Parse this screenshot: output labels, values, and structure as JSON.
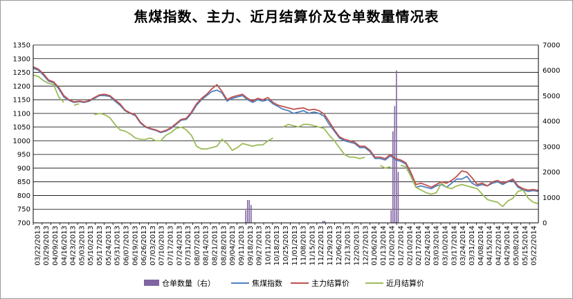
{
  "chart_data": {
    "type": "line",
    "title": "焦煤指数、主力、近月结算价及仓单数量情况表",
    "y_left": {
      "min": 700,
      "max": 1350,
      "step": 50
    },
    "y_right": {
      "min": 0,
      "max": 7000,
      "step": 1000
    },
    "grid": "horizontal",
    "legend_position": "bottom",
    "x_ticks": [
      "03/22/2013",
      "03/29/2013",
      "04/09/2013",
      "04/16/2013",
      "04/23/2013",
      "05/03/2013",
      "05/10/2013",
      "05/17/2013",
      "05/24/2013",
      "05/31/2013",
      "06/07/2013",
      "06/19/2013",
      "06/26/2013",
      "07/03/2013",
      "07/10/2013",
      "07/17/2013",
      "07/24/2013",
      "07/31/2013",
      "08/07/2013",
      "08/14/2013",
      "08/21/2013",
      "08/28/2013",
      "09/04/2013",
      "09/11/2013",
      "09/18/2013",
      "09/27/2013",
      "10/11/2013",
      "10/18/2013",
      "10/25/2013",
      "11/01/2013",
      "11/08/2013",
      "11/15/2013",
      "11/22/2013",
      "11/29/2013",
      "12/06/2013",
      "12/13/2013",
      "12/20/2013",
      "12/27/2013",
      "01/06/2014",
      "01/13/2014",
      "01/20/2014",
      "01/27/2014",
      "02/10/2014",
      "02/17/2014",
      "02/24/2014",
      "03/03/2014",
      "03/10/2014",
      "03/17/2014",
      "03/24/2014",
      "03/31/2014",
      "04/08/2014",
      "04/15/2014",
      "04/22/2014",
      "04/29/2014",
      "05/08/2014",
      "05/15/2014",
      "05/22/2014"
    ],
    "series": [
      {
        "name": "焦煤指数",
        "axis": "left",
        "color": "#4f81bd",
        "values": [
          1265,
          1258,
          1240,
          1218,
          1212,
          1190,
          1160,
          1148,
          1140,
          1143,
          1140,
          1145,
          1155,
          1165,
          1165,
          1162,
          1145,
          1130,
          1110,
          1100,
          1092,
          1065,
          1050,
          1043,
          1038,
          1030,
          1035,
          1045,
          1060,
          1075,
          1078,
          1100,
          1130,
          1150,
          1165,
          1180,
          1185,
          1175,
          1145,
          1155,
          1160,
          1165,
          1150,
          1140,
          1150,
          1145,
          1150,
          1135,
          1125,
          1115,
          1110,
          1100,
          1105,
          1110,
          1100,
          1105,
          1100,
          1090,
          1060,
          1035,
          1010,
          1000,
          995,
          990,
          975,
          975,
          960,
          935,
          935,
          930,
          945,
          930,
          925,
          915,
          880,
          830,
          835,
          830,
          825,
          835,
          840,
          830,
          845,
          860,
          860,
          870,
          845,
          835,
          840,
          835,
          845,
          850,
          840,
          850,
          855,
          830,
          820,
          815,
          818,
          815
        ]
      },
      {
        "name": "主力结算价",
        "axis": "left",
        "color": "#c0504d",
        "values": [
          1270,
          1262,
          1245,
          1222,
          1215,
          1195,
          1165,
          1150,
          1142,
          1145,
          1142,
          1147,
          1158,
          1168,
          1170,
          1165,
          1150,
          1135,
          1112,
          1102,
          1095,
          1068,
          1052,
          1045,
          1040,
          1032,
          1038,
          1048,
          1063,
          1078,
          1082,
          1105,
          1135,
          1155,
          1170,
          1190,
          1205,
          1180,
          1150,
          1160,
          1165,
          1170,
          1155,
          1145,
          1155,
          1150,
          1158,
          1140,
          1130,
          1125,
          1120,
          1115,
          1118,
          1120,
          1112,
          1115,
          1110,
          1098,
          1070,
          1040,
          1015,
          1005,
          1000,
          995,
          980,
          980,
          965,
          940,
          940,
          935,
          950,
          935,
          930,
          920,
          885,
          840,
          845,
          838,
          830,
          840,
          850,
          845,
          855,
          870,
          890,
          885,
          865,
          840,
          845,
          835,
          850,
          855,
          845,
          852,
          860,
          835,
          825,
          820,
          822,
          818
        ]
      },
      {
        "name": "近月结算价",
        "axis": "left",
        "color": "#9bbb59",
        "values": [
          1240,
          1235,
          1220,
          1210,
          1205,
          1160,
          1140,
          null,
          1130,
          1135,
          null,
          null,
          1095,
          1100,
          1095,
          1085,
          1060,
          1040,
          1035,
          1025,
          1010,
          1005,
          1005,
          1010,
          1000,
          1000,
          1020,
          1030,
          1045,
          1050,
          1040,
          1020,
          980,
          970,
          970,
          975,
          980,
          1005,
          990,
          965,
          975,
          990,
          985,
          980,
          985,
          985,
          1000,
          1010,
          null,
          1050,
          1060,
          1055,
          1050,
          1060,
          1060,
          1055,
          1050,
          1045,
          1020,
          1000,
          975,
          950,
          940,
          940,
          935,
          940,
          null,
          null,
          910,
          900,
          905,
          null,
          910,
          905,
          870,
          830,
          820,
          810,
          805,
          810,
          845,
          830,
          825,
          835,
          840,
          835,
          830,
          825,
          805,
          785,
          780,
          775,
          760,
          780,
          790,
          815,
          820,
          790,
          775,
          770
        ]
      },
      {
        "name": "仓单数量（右）",
        "axis": "right",
        "color": "#8064a2",
        "values": [
          0,
          0,
          0,
          0,
          0,
          0,
          0,
          0,
          0,
          0,
          0,
          0,
          0,
          0,
          0,
          0,
          0,
          0,
          0,
          0,
          0,
          0,
          0,
          0,
          0,
          0,
          0,
          0,
          0,
          0,
          0,
          0,
          0,
          0,
          0,
          0,
          0,
          0,
          0,
          0,
          0,
          0,
          0,
          0,
          0,
          0,
          0,
          0,
          0,
          0,
          0,
          0,
          0,
          0,
          0,
          0,
          0,
          0,
          0,
          0,
          0,
          0,
          0,
          0,
          0,
          0,
          0,
          0,
          0,
          0,
          0,
          0,
          0,
          0,
          0,
          0,
          0,
          0,
          0,
          0,
          0,
          0,
          0,
          0,
          0,
          0,
          0,
          0,
          0,
          0,
          0,
          0,
          0,
          0,
          0,
          0,
          0,
          0,
          0,
          0
        ]
      }
    ],
    "bars": [
      {
        "x_index": 24.0,
        "value": 500
      },
      {
        "x_index": 24.2,
        "value": 900
      },
      {
        "x_index": 24.4,
        "value": 900
      },
      {
        "x_index": 24.6,
        "value": 700
      },
      {
        "x_index": 32.7,
        "value": 80
      },
      {
        "x_index": 32.9,
        "value": 80
      },
      {
        "x_index": 40.4,
        "value": 500
      },
      {
        "x_index": 40.6,
        "value": 3600
      },
      {
        "x_index": 40.8,
        "value": 4600
      },
      {
        "x_index": 41.0,
        "value": 6000
      },
      {
        "x_index": 41.2,
        "value": 2000
      }
    ],
    "legend": [
      {
        "label": "仓单数量（右）",
        "color": "#8064a2",
        "kind": "bar"
      },
      {
        "label": "焦煤指数",
        "color": "#4f81bd",
        "kind": "line"
      },
      {
        "label": "主力结算价",
        "color": "#c0504d",
        "kind": "line"
      },
      {
        "label": "近月结算价",
        "color": "#9bbb59",
        "kind": "line"
      }
    ]
  }
}
